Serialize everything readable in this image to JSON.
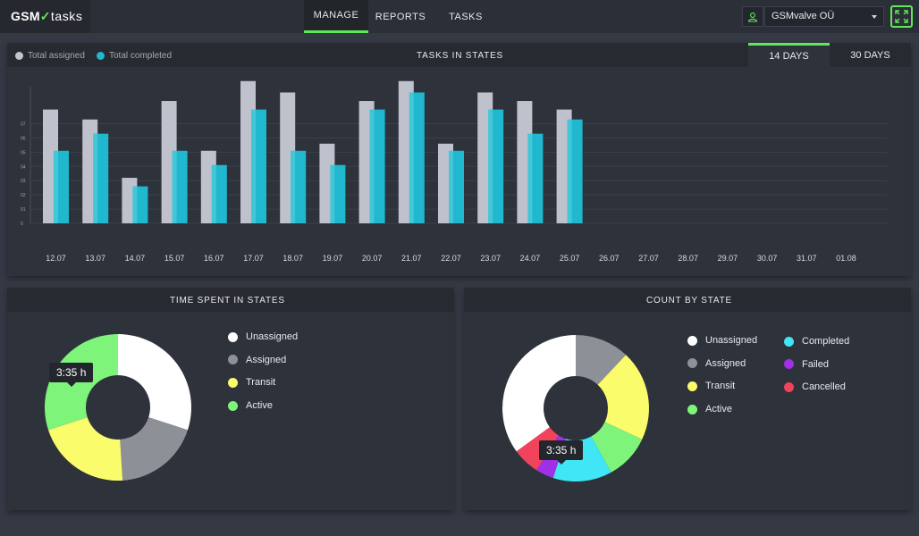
{
  "app": {
    "logo_gsm": "GSM",
    "logo_tasks": "tasks"
  },
  "nav": {
    "manage": "MANAGE",
    "reports": "REPORTS",
    "tasks": "TASKS",
    "active": "MANAGE"
  },
  "org": {
    "selected": "GSMvalve OÜ"
  },
  "icons": {
    "user": "user-icon",
    "caret": "chevron-down-icon",
    "fullscreen": "fullscreen-icon"
  },
  "colors": {
    "accent": "#61e85a",
    "assigned_bar": "#bfc1cc",
    "completed_bar": "#1fb8cf",
    "unassigned": "#ffffff",
    "assigned": "#8d9097",
    "transit": "#fbfc6b",
    "active": "#7ef57a",
    "completed": "#40e6f5",
    "failed": "#a030e6",
    "cancelled": "#f2435c"
  },
  "tasks_panel": {
    "title": "TASKS IN STATES",
    "legend_assigned": "Total assigned",
    "legend_completed": "Total completed",
    "range_14": "14 DAYS",
    "range_30": "30 DAYS",
    "active_range": "14 DAYS"
  },
  "time_panel": {
    "title": "TIME SPENT IN STATES",
    "tooltip": "3:35 h",
    "legend": [
      "Unassigned",
      "Assigned",
      "Transit",
      "Active"
    ]
  },
  "count_panel": {
    "title": "COUNT BY STATE",
    "tooltip": "3:35 h",
    "legend_left": [
      "Unassigned",
      "Assigned",
      "Transit",
      "Active"
    ],
    "legend_right": [
      "Completed",
      "Failed",
      "Cancelled"
    ]
  },
  "chart_data": [
    {
      "type": "bar",
      "title": "TASKS IN STATES",
      "categories": [
        "12.07",
        "13.07",
        "14.07",
        "15.07",
        "16.07",
        "17.07",
        "18.07",
        "19.07",
        "20.07",
        "21.07",
        "22.07",
        "23.07",
        "24.07",
        "25.07",
        "26.07",
        "27.07",
        "28.07",
        "29.07",
        "30.07",
        "31.07",
        "01.08"
      ],
      "y_ticks": [
        "0",
        "01",
        "02",
        "03",
        "04",
        "05",
        "06",
        "07"
      ],
      "series": [
        {
          "name": "Total assigned",
          "values": [
            8,
            7.3,
            3.2,
            8.6,
            5.1,
            10,
            9.2,
            5.6,
            8.6,
            10,
            5.6,
            9.2,
            8.6,
            8,
            0,
            0,
            0,
            0,
            0,
            0,
            0
          ]
        },
        {
          "name": "Total completed",
          "values": [
            5.1,
            6.3,
            2.6,
            5.1,
            4.1,
            8,
            5.1,
            4.1,
            8,
            9.2,
            5.1,
            8,
            6.3,
            7.3,
            0,
            0,
            0,
            0,
            0,
            0,
            0
          ]
        }
      ],
      "ylim": [
        0,
        10.8
      ],
      "legend": "top-left",
      "grid": true
    },
    {
      "type": "pie",
      "title": "TIME SPENT IN STATES",
      "labels": [
        "Unassigned",
        "Assigned",
        "Transit",
        "Active"
      ],
      "values": [
        30,
        19,
        21,
        30
      ]
    },
    {
      "type": "pie",
      "title": "COUNT BY STATE",
      "labels": [
        "Unassigned",
        "Assigned",
        "Transit",
        "Active",
        "Completed",
        "Failed",
        "Cancelled"
      ],
      "values": [
        35,
        12,
        20,
        10,
        13,
        4,
        6
      ]
    }
  ]
}
